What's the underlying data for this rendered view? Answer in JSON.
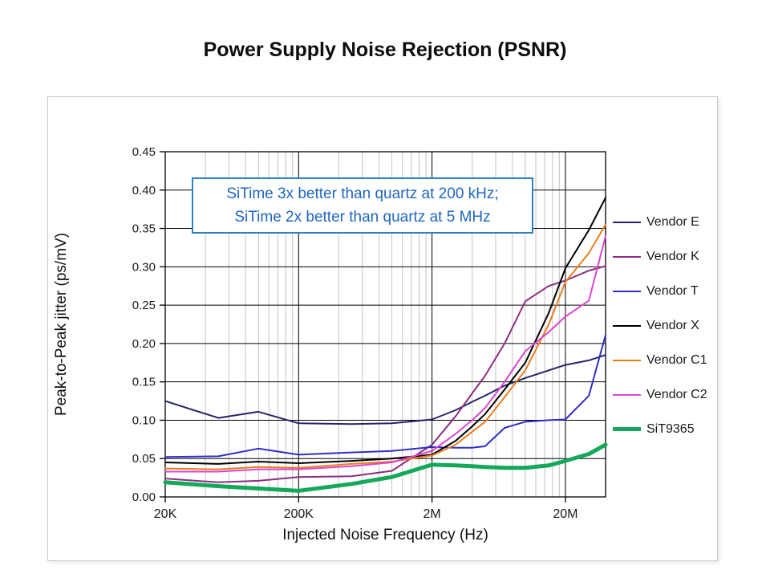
{
  "title": "Power Supply Noise Rejection (PSNR)",
  "annotation": {
    "line1": "SiTime 3x better than quartz at 200 kHz;",
    "line2": "SiTime 2x better than quartz at 5 MHz"
  },
  "chart_data": {
    "type": "line",
    "title": "Power Supply Noise Rejection (PSNR)",
    "xlabel": "Injected Noise Frequency (Hz)",
    "ylabel": "Peak-to-Peak jitter (ps/mV)",
    "x_scale": "log",
    "xlim": [
      20000,
      40000000
    ],
    "ylim": [
      0,
      0.45
    ],
    "grid": true,
    "legend_position": "right",
    "y_ticks": [
      {
        "label": "0.00",
        "value": 0.0
      },
      {
        "label": "0.05",
        "value": 0.05
      },
      {
        "label": "0.10",
        "value": 0.1
      },
      {
        "label": "0.15",
        "value": 0.15
      },
      {
        "label": "0.20",
        "value": 0.2
      },
      {
        "label": "0.25",
        "value": 0.25
      },
      {
        "label": "0.30",
        "value": 0.3
      },
      {
        "label": "0.35",
        "value": 0.35
      },
      {
        "label": "0.40",
        "value": 0.4
      },
      {
        "label": "0.45",
        "value": 0.45
      }
    ],
    "x_ticks": [
      {
        "label": "20K",
        "hz": 20000
      },
      {
        "label": "200K",
        "hz": 200000
      },
      {
        "label": "2M",
        "hz": 2000000
      },
      {
        "label": "20M",
        "hz": 20000000
      }
    ],
    "minor_grid_decades": [
      20000,
      200000,
      2000000
    ],
    "minor_grid_multiples": [
      2,
      3,
      4,
      5,
      6,
      7,
      8,
      9
    ],
    "x": [
      20000,
      50000,
      100000,
      200000,
      500000,
      1000000,
      2000000,
      3000000,
      4000000,
      5000000,
      7000000,
      10000000,
      15000000,
      20000000,
      30000000,
      40000000
    ],
    "series": [
      {
        "name": "Vendor E",
        "color": "#252566",
        "width": 2,
        "values": [
          0.125,
          0.103,
          0.111,
          0.096,
          0.095,
          0.096,
          0.101,
          0.113,
          0.124,
          0.132,
          0.145,
          0.155,
          0.165,
          0.172,
          0.178,
          0.185
        ]
      },
      {
        "name": "Vendor K",
        "color": "#8b2e82",
        "width": 2,
        "values": [
          0.024,
          0.019,
          0.021,
          0.026,
          0.027,
          0.034,
          0.068,
          0.105,
          0.135,
          0.158,
          0.2,
          0.255,
          0.275,
          0.282,
          0.295,
          0.301
        ]
      },
      {
        "name": "Vendor T",
        "color": "#2e2ec9",
        "width": 2,
        "values": [
          0.052,
          0.053,
          0.063,
          0.055,
          0.058,
          0.06,
          0.065,
          0.064,
          0.064,
          0.066,
          0.09,
          0.098,
          0.1,
          0.101,
          0.132,
          0.211
        ]
      },
      {
        "name": "Vendor X",
        "color": "#000000",
        "width": 2,
        "values": [
          0.045,
          0.043,
          0.046,
          0.044,
          0.047,
          0.05,
          0.055,
          0.073,
          0.092,
          0.108,
          0.14,
          0.175,
          0.24,
          0.298,
          0.348,
          0.39
        ]
      },
      {
        "name": "Vendor C1",
        "color": "#e87d1e",
        "width": 2,
        "values": [
          0.037,
          0.036,
          0.039,
          0.038,
          0.043,
          0.046,
          0.054,
          0.068,
          0.085,
          0.098,
          0.13,
          0.165,
          0.225,
          0.28,
          0.318,
          0.355
        ]
      },
      {
        "name": "Vendor C2",
        "color": "#dc45d2",
        "width": 2,
        "values": [
          0.033,
          0.033,
          0.036,
          0.036,
          0.04,
          0.045,
          0.06,
          0.082,
          0.1,
          0.116,
          0.15,
          0.19,
          0.215,
          0.235,
          0.256,
          0.34
        ]
      },
      {
        "name": "SiT9365",
        "color": "#15a85a",
        "width": 5,
        "values": [
          0.019,
          0.014,
          0.011,
          0.008,
          0.017,
          0.026,
          0.042,
          0.041,
          0.04,
          0.039,
          0.038,
          0.038,
          0.041,
          0.047,
          0.056,
          0.068
        ]
      }
    ],
    "colors": {
      "minor_grid": "#c3c3c3",
      "major_grid": "#000000",
      "annotation_text": "#1f66c1",
      "annotation_border": "#2e81be"
    }
  }
}
